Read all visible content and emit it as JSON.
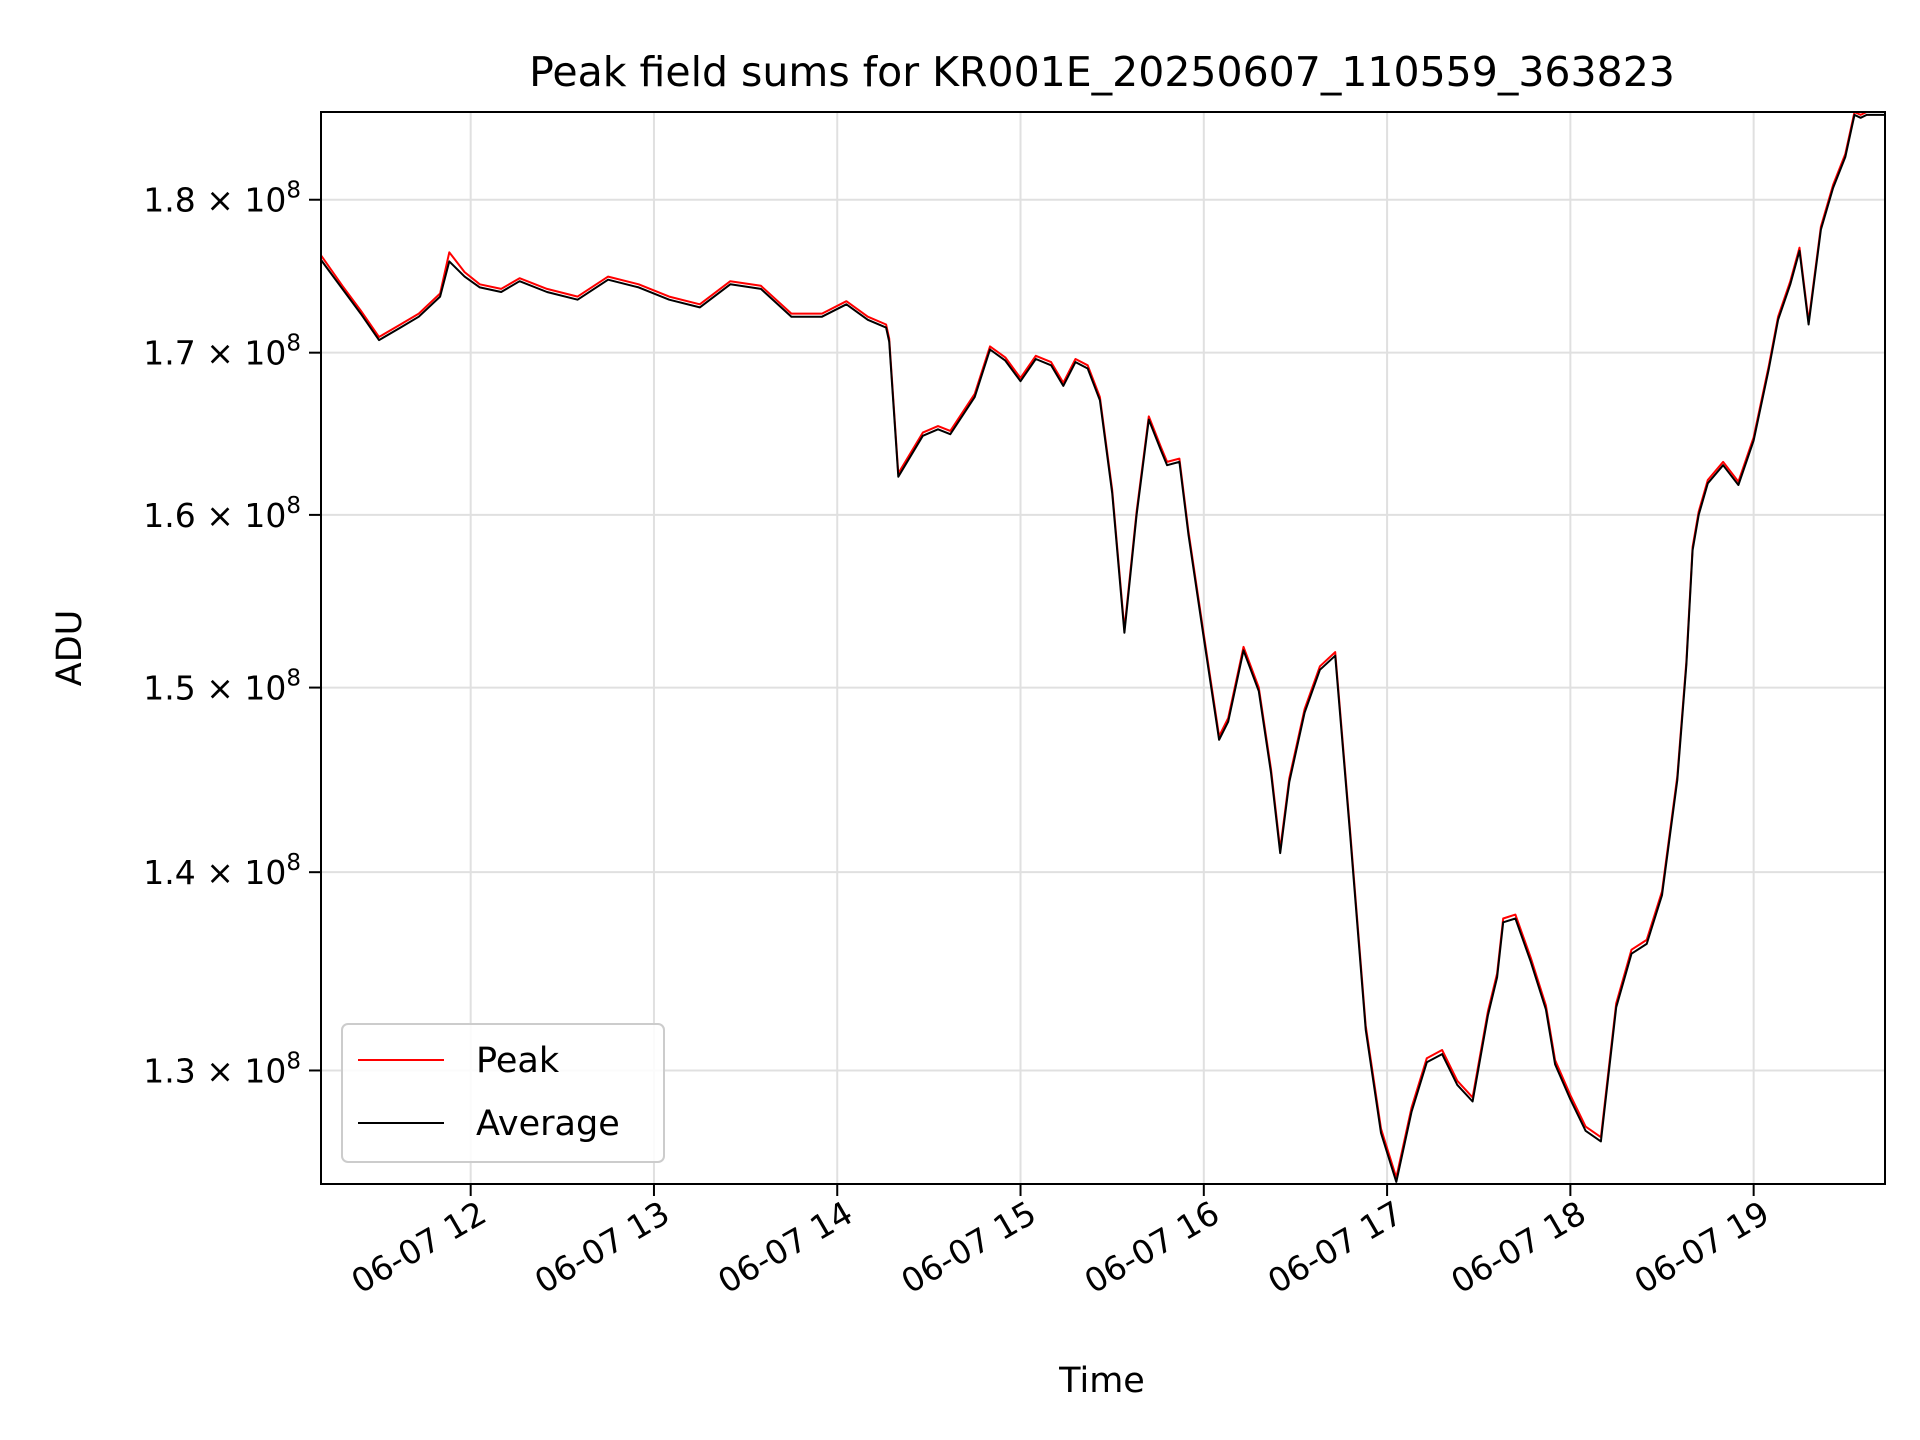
{
  "chart_data": {
    "type": "line",
    "title": "Peak field sums for KR001E_20250607_110559_363823",
    "xlabel": "Time",
    "ylabel": "ADU",
    "grid": true,
    "legend_position": "lower-left",
    "y_scale": "log",
    "xlim": [
      "2025-06-07 11:11",
      "2025-06-07 19:43"
    ],
    "ylim": [
      124600000,
      186000000
    ],
    "x_ticks": [
      {
        "value": "2025-06-07 12:00",
        "label": "06-07 12"
      },
      {
        "value": "2025-06-07 13:00",
        "label": "06-07 13"
      },
      {
        "value": "2025-06-07 14:00",
        "label": "06-07 14"
      },
      {
        "value": "2025-06-07 15:00",
        "label": "06-07 15"
      },
      {
        "value": "2025-06-07 16:00",
        "label": "06-07 16"
      },
      {
        "value": "2025-06-07 17:00",
        "label": "06-07 17"
      },
      {
        "value": "2025-06-07 18:00",
        "label": "06-07 18"
      },
      {
        "value": "2025-06-07 19:00",
        "label": "06-07 19"
      }
    ],
    "y_ticks": [
      {
        "value": 130000000,
        "base": "1.3",
        "exp": "8"
      },
      {
        "value": 140000000,
        "base": "1.4",
        "exp": "8"
      },
      {
        "value": 150000000,
        "base": "1.5",
        "exp": "8"
      },
      {
        "value": 160000000,
        "base": "1.6",
        "exp": "8"
      },
      {
        "value": 170000000,
        "base": "1.7",
        "exp": "8"
      },
      {
        "value": 180000000,
        "base": "1.8",
        "exp": "8"
      }
    ],
    "x": [
      "2025-06-07 11:11",
      "2025-06-07 11:18",
      "2025-06-07 11:24",
      "2025-06-07 11:30",
      "2025-06-07 11:37",
      "2025-06-07 11:43",
      "2025-06-07 11:50",
      "2025-06-07 11:53",
      "2025-06-07 11:58",
      "2025-06-07 12:03",
      "2025-06-07 12:10",
      "2025-06-07 12:16",
      "2025-06-07 12:25",
      "2025-06-07 12:35",
      "2025-06-07 12:45",
      "2025-06-07 12:55",
      "2025-06-07 13:05",
      "2025-06-07 13:15",
      "2025-06-07 13:25",
      "2025-06-07 13:35",
      "2025-06-07 13:45",
      "2025-06-07 13:55",
      "2025-06-07 14:03",
      "2025-06-07 14:10",
      "2025-06-07 14:16",
      "2025-06-07 14:17",
      "2025-06-07 14:20",
      "2025-06-07 14:28",
      "2025-06-07 14:33",
      "2025-06-07 14:37",
      "2025-06-07 14:45",
      "2025-06-07 14:50",
      "2025-06-07 14:55",
      "2025-06-07 15:00",
      "2025-06-07 15:05",
      "2025-06-07 15:10",
      "2025-06-07 15:14",
      "2025-06-07 15:18",
      "2025-06-07 15:22",
      "2025-06-07 15:26",
      "2025-06-07 15:30",
      "2025-06-07 15:34",
      "2025-06-07 15:38",
      "2025-06-07 15:42",
      "2025-06-07 15:46",
      "2025-06-07 15:48",
      "2025-06-07 15:52",
      "2025-06-07 15:55",
      "2025-06-07 16:00",
      "2025-06-07 16:05",
      "2025-06-07 16:08",
      "2025-06-07 16:13",
      "2025-06-07 16:18",
      "2025-06-07 16:22",
      "2025-06-07 16:25",
      "2025-06-07 16:28",
      "2025-06-07 16:33",
      "2025-06-07 16:38",
      "2025-06-07 16:43",
      "2025-06-07 16:48",
      "2025-06-07 16:53",
      "2025-06-07 16:58",
      "2025-06-07 17:03",
      "2025-06-07 17:08",
      "2025-06-07 17:13",
      "2025-06-07 17:18",
      "2025-06-07 17:23",
      "2025-06-07 17:28",
      "2025-06-07 17:33",
      "2025-06-07 17:36",
      "2025-06-07 17:38",
      "2025-06-07 17:42",
      "2025-06-07 17:47",
      "2025-06-07 17:52",
      "2025-06-07 17:55",
      "2025-06-07 18:00",
      "2025-06-07 18:05",
      "2025-06-07 18:10",
      "2025-06-07 18:15",
      "2025-06-07 18:20",
      "2025-06-07 18:25",
      "2025-06-07 18:30",
      "2025-06-07 18:35",
      "2025-06-07 18:38",
      "2025-06-07 18:40",
      "2025-06-07 18:42",
      "2025-06-07 18:45",
      "2025-06-07 18:50",
      "2025-06-07 18:55",
      "2025-06-07 19:00",
      "2025-06-07 19:05",
      "2025-06-07 19:08",
      "2025-06-07 19:12",
      "2025-06-07 19:15",
      "2025-06-07 19:18",
      "2025-06-07 19:22",
      "2025-06-07 19:26",
      "2025-06-07 19:30",
      "2025-06-07 19:33",
      "2025-06-07 19:35",
      "2025-06-07 19:37",
      "2025-06-07 19:40",
      "2025-06-07 19:43"
    ],
    "series": [
      {
        "name": "Peak",
        "color": "#ff0000",
        "values": [
          176300000,
          174300000,
          172700000,
          171000000,
          171800000,
          172500000,
          173800000,
          176500000,
          175200000,
          174400000,
          174100000,
          174800000,
          174100000,
          173600000,
          174900000,
          174400000,
          173600000,
          173100000,
          174600000,
          174300000,
          172500000,
          172500000,
          173300000,
          172300000,
          171800000,
          170900000,
          162500000,
          165000000,
          165400000,
          165100000,
          167400000,
          170400000,
          169700000,
          168400000,
          169800000,
          169400000,
          168100000,
          169600000,
          169200000,
          167200000,
          161500000,
          153300000,
          160200000,
          166000000,
          164100000,
          163200000,
          163400000,
          159000000,
          153000000,
          147300000,
          148300000,
          152300000,
          150000000,
          145500000,
          141200000,
          145000000,
          148800000,
          151200000,
          152000000,
          142000000,
          132200000,
          127200000,
          124900000,
          128200000,
          130600000,
          131000000,
          129500000,
          128700000,
          132900000,
          134800000,
          137600000,
          137800000,
          135600000,
          133200000,
          130500000,
          128800000,
          127300000,
          126800000,
          133300000,
          136000000,
          136500000,
          139000000,
          145100000,
          151500000,
          158100000,
          160200000,
          162100000,
          163200000,
          162000000,
          164700000,
          169200000,
          172300000,
          174600000,
          176800000,
          172000000,
          178200000,
          181000000,
          183100000,
          186000000,
          185800000,
          186000000,
          186000000,
          186000000
        ]
      },
      {
        "name": "Average",
        "color": "#000000",
        "values": [
          176000000,
          174100000,
          172500000,
          170800000,
          171600000,
          172300000,
          173600000,
          175900000,
          174900000,
          174200000,
          173900000,
          174600000,
          173900000,
          173400000,
          174700000,
          174200000,
          173400000,
          172900000,
          174400000,
          174100000,
          172300000,
          172300000,
          173100000,
          172100000,
          171600000,
          170700000,
          162300000,
          164800000,
          165200000,
          164900000,
          167200000,
          170200000,
          169500000,
          168200000,
          169600000,
          169200000,
          167900000,
          169400000,
          169000000,
          167000000,
          161300000,
          153100000,
          160000000,
          165800000,
          163900000,
          163000000,
          163200000,
          158800000,
          152800000,
          147100000,
          148100000,
          152100000,
          149800000,
          145300000,
          141000000,
          144800000,
          148600000,
          151000000,
          151800000,
          141800000,
          132000000,
          127000000,
          124700000,
          128000000,
          130400000,
          130800000,
          129300000,
          128500000,
          132700000,
          134600000,
          137400000,
          137600000,
          135400000,
          133000000,
          130300000,
          128600000,
          127100000,
          126600000,
          133100000,
          135800000,
          136300000,
          138800000,
          144900000,
          151300000,
          157900000,
          160000000,
          161900000,
          163000000,
          161800000,
          164500000,
          169000000,
          172100000,
          174400000,
          176600000,
          171800000,
          178000000,
          180800000,
          182900000,
          185800000,
          185600000,
          185800000,
          185800000,
          185800000
        ]
      }
    ]
  }
}
